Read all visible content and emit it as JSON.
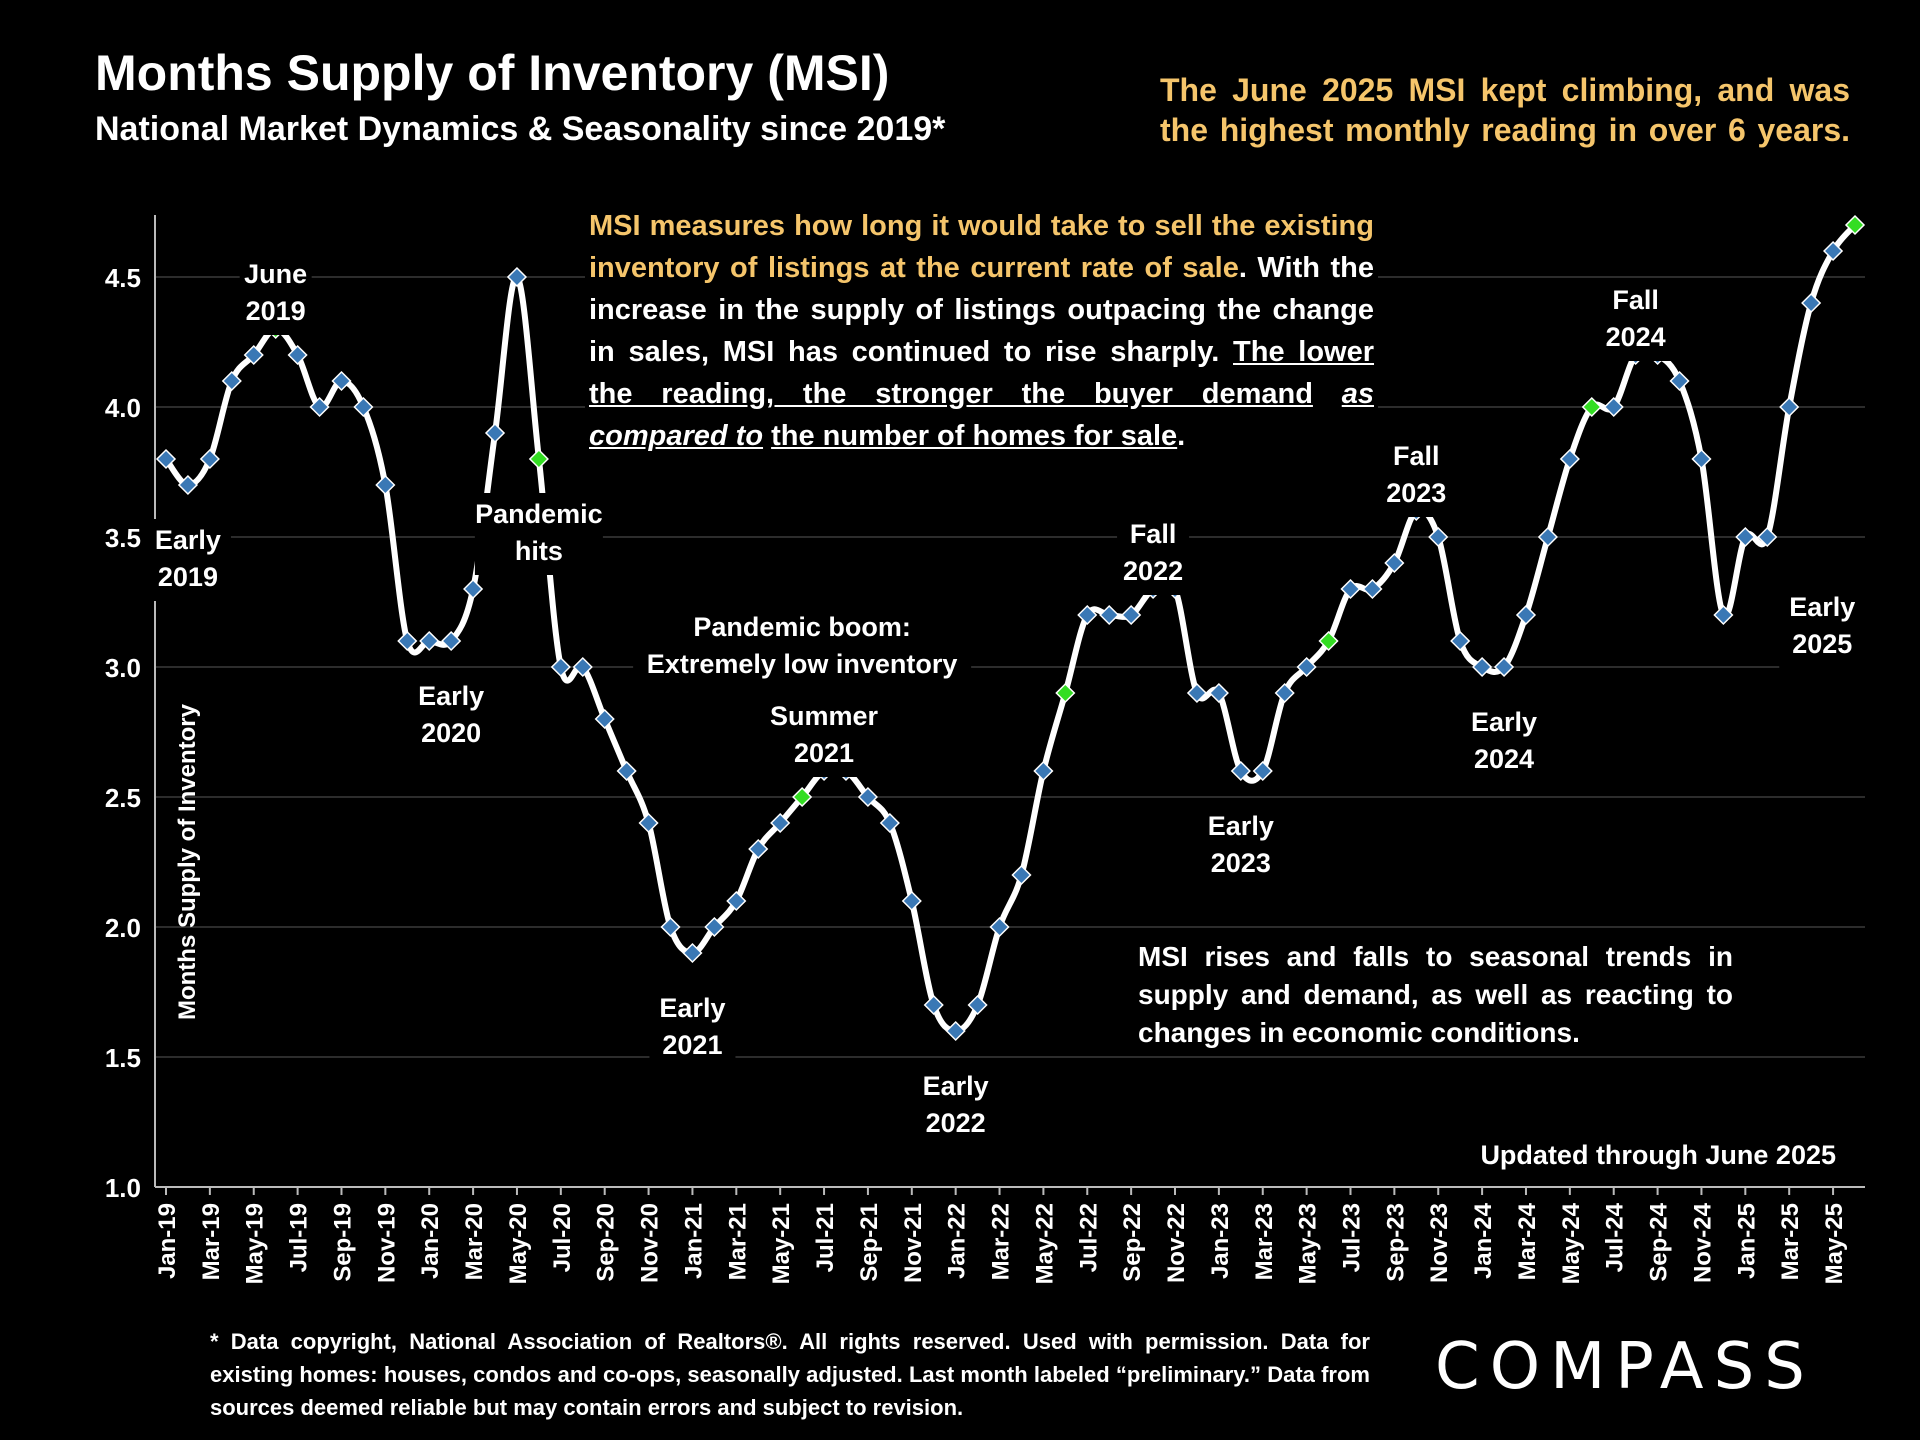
{
  "header": {
    "title": "Months Supply of Inventory (MSI)",
    "subtitle": "National Market Dynamics & Seasonality since 2019*",
    "headline": "The June 2025 MSI kept climbing, and was the highest monthly reading in over 6 years."
  },
  "info_box": {
    "p1_highlight": "MSI measures how long it would take to sell the existing inventory of listings at the current rate of sale",
    "p1_period": ".",
    "p2": "With the increase in the supply of listings outpacing the change in sales, MSI has continued to rise sharply.",
    "p3_underline": "The lower the reading, the stronger the buyer demand",
    "p3_italic": "as compared to",
    "p3_rest": "the number of homes for sale",
    "p3_period": "."
  },
  "seasonal_note": "MSI rises and falls to seasonal trends in supply and demand, as well as reacting to changes in economic conditions.",
  "updated_note": "Updated through June 2025",
  "footnote": "* Data copyright, National Association of Realtors®. All rights reserved. Used with permission. Data for existing homes: houses, condos and co-ops, seasonally adjusted. Last month labeled “preliminary.” Data from sources deemed reliable but may contain errors and subject to revision.",
  "logo_text": "COMPASS",
  "colors": {
    "background": "#000000",
    "line": "#ffffff",
    "marker": "#3a78b5",
    "highlight_marker": "#33dd22",
    "headline": "#f5c56b",
    "grid": "#3a3a3a"
  },
  "chart_data": {
    "type": "line",
    "ylabel": "Months Supply of Inventory",
    "ylim": [
      1.0,
      4.7
    ],
    "yticks": [
      "1.0",
      "1.5",
      "2.0",
      "2.5",
      "3.0",
      "3.5",
      "4.0",
      "4.5"
    ],
    "x": [
      "Jan-19",
      "Feb-19",
      "Mar-19",
      "Apr-19",
      "May-19",
      "Jun-19",
      "Jul-19",
      "Aug-19",
      "Sep-19",
      "Oct-19",
      "Nov-19",
      "Dec-19",
      "Jan-20",
      "Feb-20",
      "Mar-20",
      "Apr-20",
      "May-20",
      "Jun-20",
      "Jul-20",
      "Aug-20",
      "Sep-20",
      "Oct-20",
      "Nov-20",
      "Dec-20",
      "Jan-21",
      "Feb-21",
      "Mar-21",
      "Apr-21",
      "May-21",
      "Jun-21",
      "Jul-21",
      "Aug-21",
      "Sep-21",
      "Oct-21",
      "Nov-21",
      "Dec-21",
      "Jan-22",
      "Feb-22",
      "Mar-22",
      "Apr-22",
      "May-22",
      "Jun-22",
      "Jul-22",
      "Aug-22",
      "Sep-22",
      "Oct-22",
      "Nov-22",
      "Dec-22",
      "Jan-23",
      "Feb-23",
      "Mar-23",
      "Apr-23",
      "May-23",
      "Jun-23",
      "Jul-23",
      "Aug-23",
      "Sep-23",
      "Oct-23",
      "Nov-23",
      "Dec-23",
      "Jan-24",
      "Feb-24",
      "Mar-24",
      "Apr-24",
      "May-24",
      "Jun-24",
      "Jul-24",
      "Aug-24",
      "Sep-24",
      "Oct-24",
      "Nov-24",
      "Dec-24",
      "Jan-25",
      "Feb-25",
      "Mar-25",
      "Apr-25",
      "May-25",
      "Jun-25"
    ],
    "tick_labels": [
      "Jan-19",
      "Mar-19",
      "May-19",
      "Jul-19",
      "Sep-19",
      "Nov-19",
      "Jan-20",
      "Mar-20",
      "May-20",
      "Jul-20",
      "Sep-20",
      "Nov-20",
      "Jan-21",
      "Mar-21",
      "May-21",
      "Jul-21",
      "Sep-21",
      "Nov-21",
      "Jan-22",
      "Mar-22",
      "May-22",
      "Jul-22",
      "Sep-22",
      "Nov-22",
      "Jan-23",
      "Mar-23",
      "May-23",
      "Jul-23",
      "Sep-23",
      "Nov-23",
      "Jan-24",
      "Mar-24",
      "May-24",
      "Jul-24",
      "Sep-24",
      "Nov-24",
      "Jan-25",
      "Mar-25",
      "May-25"
    ],
    "values": [
      3.8,
      3.7,
      3.8,
      4.1,
      4.2,
      4.3,
      4.2,
      4.0,
      4.1,
      4.0,
      3.7,
      3.1,
      3.1,
      3.1,
      3.3,
      3.9,
      4.5,
      3.8,
      3.0,
      3.0,
      2.8,
      2.6,
      2.4,
      2.0,
      1.9,
      2.0,
      2.1,
      2.3,
      2.4,
      2.5,
      2.6,
      2.6,
      2.5,
      2.4,
      2.1,
      1.7,
      1.6,
      1.7,
      2.0,
      2.2,
      2.6,
      2.9,
      3.2,
      3.2,
      3.2,
      3.3,
      3.3,
      2.9,
      2.9,
      2.6,
      2.6,
      2.9,
      3.0,
      3.1,
      3.3,
      3.3,
      3.4,
      3.6,
      3.5,
      3.1,
      3.0,
      3.0,
      3.2,
      3.5,
      3.8,
      4.0,
      4.0,
      4.2,
      4.2,
      4.1,
      3.8,
      3.2,
      3.5,
      3.5,
      4.0,
      4.4,
      4.6,
      4.7
    ],
    "highlight_points": [
      "Jun-19",
      "Jun-20",
      "Jun-21",
      "Jun-22",
      "Jun-23",
      "Jun-24",
      "Jun-25"
    ],
    "annotations": [
      {
        "text": "June 2019",
        "lines": [
          "June",
          "2019"
        ],
        "at": "Jun-19",
        "side": "above"
      },
      {
        "text": "Early 2019",
        "lines": [
          "Early",
          "2019"
        ],
        "at": "Feb-19",
        "side": "below"
      },
      {
        "text": "Pandemic hits",
        "lines": [
          "Pandemic",
          "hits"
        ],
        "at": "Jun-20",
        "side": "below"
      },
      {
        "text": "Early 2020",
        "lines": [
          "Early",
          "2020"
        ],
        "at": "Feb-20",
        "side": "below"
      },
      {
        "text": "Pandemic boom: Extremely low inventory",
        "lines": [
          "Pandemic boom:",
          "Extremely low inventory"
        ],
        "at": "Jun-21",
        "side": "above-far"
      },
      {
        "text": "Summer 2021",
        "lines": [
          "Summer",
          "2021"
        ],
        "at": "Jul-21",
        "side": "above"
      },
      {
        "text": "Early 2021",
        "lines": [
          "Early",
          "2021"
        ],
        "at": "Jan-21",
        "side": "below"
      },
      {
        "text": "Early 2022",
        "lines": [
          "Early",
          "2022"
        ],
        "at": "Jan-22",
        "side": "below"
      },
      {
        "text": "Fall 2022",
        "lines": [
          "Fall",
          "2022"
        ],
        "at": "Oct-22",
        "side": "above"
      },
      {
        "text": "Early 2023",
        "lines": [
          "Early",
          "2023"
        ],
        "at": "Feb-23",
        "side": "below"
      },
      {
        "text": "Fall 2023",
        "lines": [
          "Fall",
          "2023"
        ],
        "at": "Oct-23",
        "side": "above"
      },
      {
        "text": "Early 2024",
        "lines": [
          "Early",
          "2024"
        ],
        "at": "Feb-24",
        "side": "below"
      },
      {
        "text": "Fall 2024",
        "lines": [
          "Fall",
          "2024"
        ],
        "at": "Aug-24",
        "side": "above"
      },
      {
        "text": "Early 2025",
        "lines": [
          "Early",
          "2025"
        ],
        "at": "Feb-25",
        "side": "right"
      }
    ],
    "grid": true
  }
}
